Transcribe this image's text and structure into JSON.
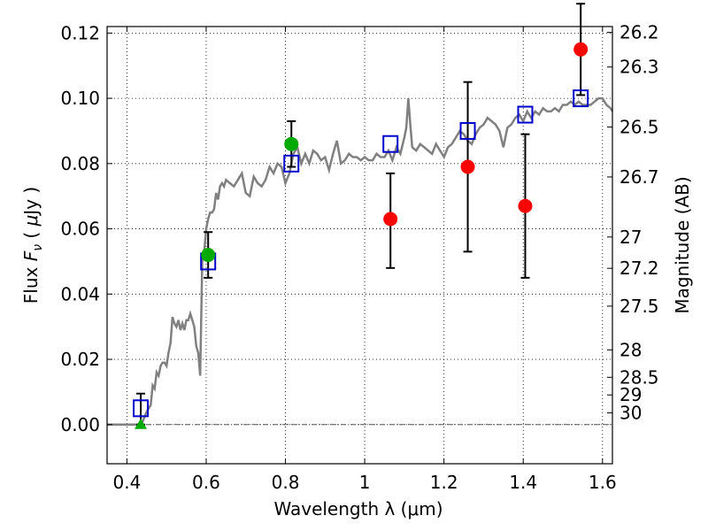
{
  "chart_data": {
    "type": "scatter",
    "xlabel": "Wavelength  λ (μm)",
    "ylabel_parts": [
      "Flux  ",
      "F",
      "ν",
      "  ( ",
      "μ",
      "Jy )"
    ],
    "y2label": "Magnitude (AB)",
    "xlim": [
      0.35,
      1.625
    ],
    "ylim": [
      -0.012,
      0.122
    ],
    "grid": true,
    "x_ticks": [
      0.4,
      0.6,
      0.8,
      1.0,
      1.2,
      1.4,
      1.6
    ],
    "x_tick_labels": [
      "0.4",
      "0.6",
      "0.8",
      "1",
      "1.2",
      "1.4",
      "1.6"
    ],
    "y_ticks": [
      0.0,
      0.02,
      0.04,
      0.06,
      0.08,
      0.1,
      0.12
    ],
    "y_tick_labels": [
      "0.00",
      "0.02",
      "0.04",
      "0.06",
      "0.08",
      "0.10",
      "0.12"
    ],
    "magnitude_ticks": [
      {
        "label": "26.2",
        "flux": 0.1202
      },
      {
        "label": "26.3",
        "flux": 0.1096
      },
      {
        "label": "26.5",
        "flux": 0.0912
      },
      {
        "label": "26.7",
        "flux": 0.0759
      },
      {
        "label": "27",
        "flux": 0.0575
      },
      {
        "label": "27.2",
        "flux": 0.0479
      },
      {
        "label": "27.5",
        "flux": 0.0363
      },
      {
        "label": "28",
        "flux": 0.0229
      },
      {
        "label": "28.5",
        "flux": 0.0145
      },
      {
        "label": "29",
        "flux": 0.0091
      },
      {
        "label": "30",
        "flux": 0.0036
      }
    ],
    "model_spectrum": {
      "color": "#808080",
      "x": [
        0.35,
        0.43,
        0.44,
        0.45,
        0.46,
        0.465,
        0.47,
        0.475,
        0.48,
        0.485,
        0.49,
        0.495,
        0.5,
        0.505,
        0.51,
        0.515,
        0.52,
        0.525,
        0.53,
        0.535,
        0.54,
        0.545,
        0.55,
        0.555,
        0.56,
        0.565,
        0.57,
        0.575,
        0.58,
        0.585,
        0.59,
        0.595,
        0.6,
        0.605,
        0.61,
        0.615,
        0.62,
        0.625,
        0.63,
        0.635,
        0.64,
        0.645,
        0.65,
        0.66,
        0.67,
        0.68,
        0.69,
        0.7,
        0.71,
        0.72,
        0.73,
        0.74,
        0.75,
        0.76,
        0.77,
        0.78,
        0.79,
        0.8,
        0.81,
        0.82,
        0.83,
        0.84,
        0.85,
        0.86,
        0.87,
        0.88,
        0.89,
        0.9,
        0.91,
        0.92,
        0.93,
        0.94,
        0.95,
        0.96,
        0.97,
        0.98,
        0.99,
        1.0,
        1.01,
        1.02,
        1.03,
        1.04,
        1.05,
        1.06,
        1.07,
        1.08,
        1.09,
        1.1,
        1.105,
        1.11,
        1.115,
        1.12,
        1.13,
        1.14,
        1.15,
        1.16,
        1.17,
        1.18,
        1.19,
        1.2,
        1.21,
        1.22,
        1.23,
        1.24,
        1.25,
        1.26,
        1.27,
        1.28,
        1.29,
        1.3,
        1.31,
        1.32,
        1.33,
        1.34,
        1.35,
        1.36,
        1.37,
        1.38,
        1.39,
        1.4,
        1.41,
        1.42,
        1.43,
        1.44,
        1.45,
        1.46,
        1.47,
        1.48,
        1.49,
        1.5,
        1.51,
        1.52,
        1.53,
        1.54,
        1.55,
        1.56,
        1.57,
        1.58,
        1.59,
        1.6,
        1.61,
        1.62,
        1.625
      ],
      "y": [
        0.0,
        0.0,
        0.001,
        0.004,
        0.006,
        0.012,
        0.011,
        0.016,
        0.015,
        0.018,
        0.019,
        0.019,
        0.018,
        0.022,
        0.025,
        0.033,
        0.031,
        0.03,
        0.032,
        0.029,
        0.031,
        0.029,
        0.032,
        0.032,
        0.034,
        0.032,
        0.03,
        0.024,
        0.022,
        0.015,
        0.05,
        0.053,
        0.06,
        0.063,
        0.065,
        0.065,
        0.066,
        0.071,
        0.069,
        0.073,
        0.074,
        0.073,
        0.075,
        0.074,
        0.073,
        0.075,
        0.077,
        0.071,
        0.07,
        0.076,
        0.074,
        0.073,
        0.075,
        0.079,
        0.077,
        0.08,
        0.079,
        0.074,
        0.077,
        0.083,
        0.085,
        0.08,
        0.083,
        0.08,
        0.084,
        0.083,
        0.081,
        0.082,
        0.078,
        0.083,
        0.087,
        0.08,
        0.081,
        0.083,
        0.082,
        0.082,
        0.081,
        0.082,
        0.081,
        0.081,
        0.083,
        0.082,
        0.082,
        0.084,
        0.081,
        0.085,
        0.083,
        0.088,
        0.091,
        0.1,
        0.092,
        0.085,
        0.084,
        0.086,
        0.085,
        0.084,
        0.083,
        0.086,
        0.084,
        0.082,
        0.085,
        0.086,
        0.088,
        0.09,
        0.089,
        0.087,
        0.086,
        0.089,
        0.091,
        0.092,
        0.094,
        0.093,
        0.092,
        0.09,
        0.085,
        0.091,
        0.092,
        0.094,
        0.095,
        0.093,
        0.096,
        0.094,
        0.096,
        0.095,
        0.097,
        0.096,
        0.096,
        0.097,
        0.096,
        0.098,
        0.098,
        0.099,
        0.098,
        0.099,
        0.098,
        0.098,
        0.098,
        0.099,
        0.1,
        0.1,
        0.098,
        0.097,
        0.096
      ]
    },
    "series": [
      {
        "marker": "square",
        "color": "#0000cc",
        "x": [
          0.435,
          0.605,
          0.815,
          1.065,
          1.26,
          1.405,
          1.545
        ],
        "y": [
          0.005,
          0.05,
          0.08,
          0.086,
          0.09,
          0.095,
          0.1
        ]
      },
      {
        "marker": "circle",
        "color": "#ff0000",
        "x": [
          1.065,
          1.26,
          1.405,
          1.545
        ],
        "y": [
          0.063,
          0.079,
          0.067,
          0.115
        ],
        "yerr_low": [
          0.048,
          0.053,
          0.045,
          0.101
        ],
        "yerr_high": [
          0.077,
          0.105,
          0.089,
          0.129
        ]
      },
      {
        "marker": "circle",
        "color": "#00aa00",
        "x": [
          0.605,
          0.815
        ],
        "y": [
          0.052,
          0.086
        ],
        "yerr_low": [
          0.045,
          0.079
        ],
        "yerr_high": [
          0.059,
          0.093
        ]
      },
      {
        "marker": "triangle",
        "color": "#00aa00",
        "x": [
          0.435
        ],
        "y": [
          0.0
        ],
        "yerr_low": [
          0.0
        ],
        "yerr_high": [
          0.0095
        ]
      }
    ]
  }
}
